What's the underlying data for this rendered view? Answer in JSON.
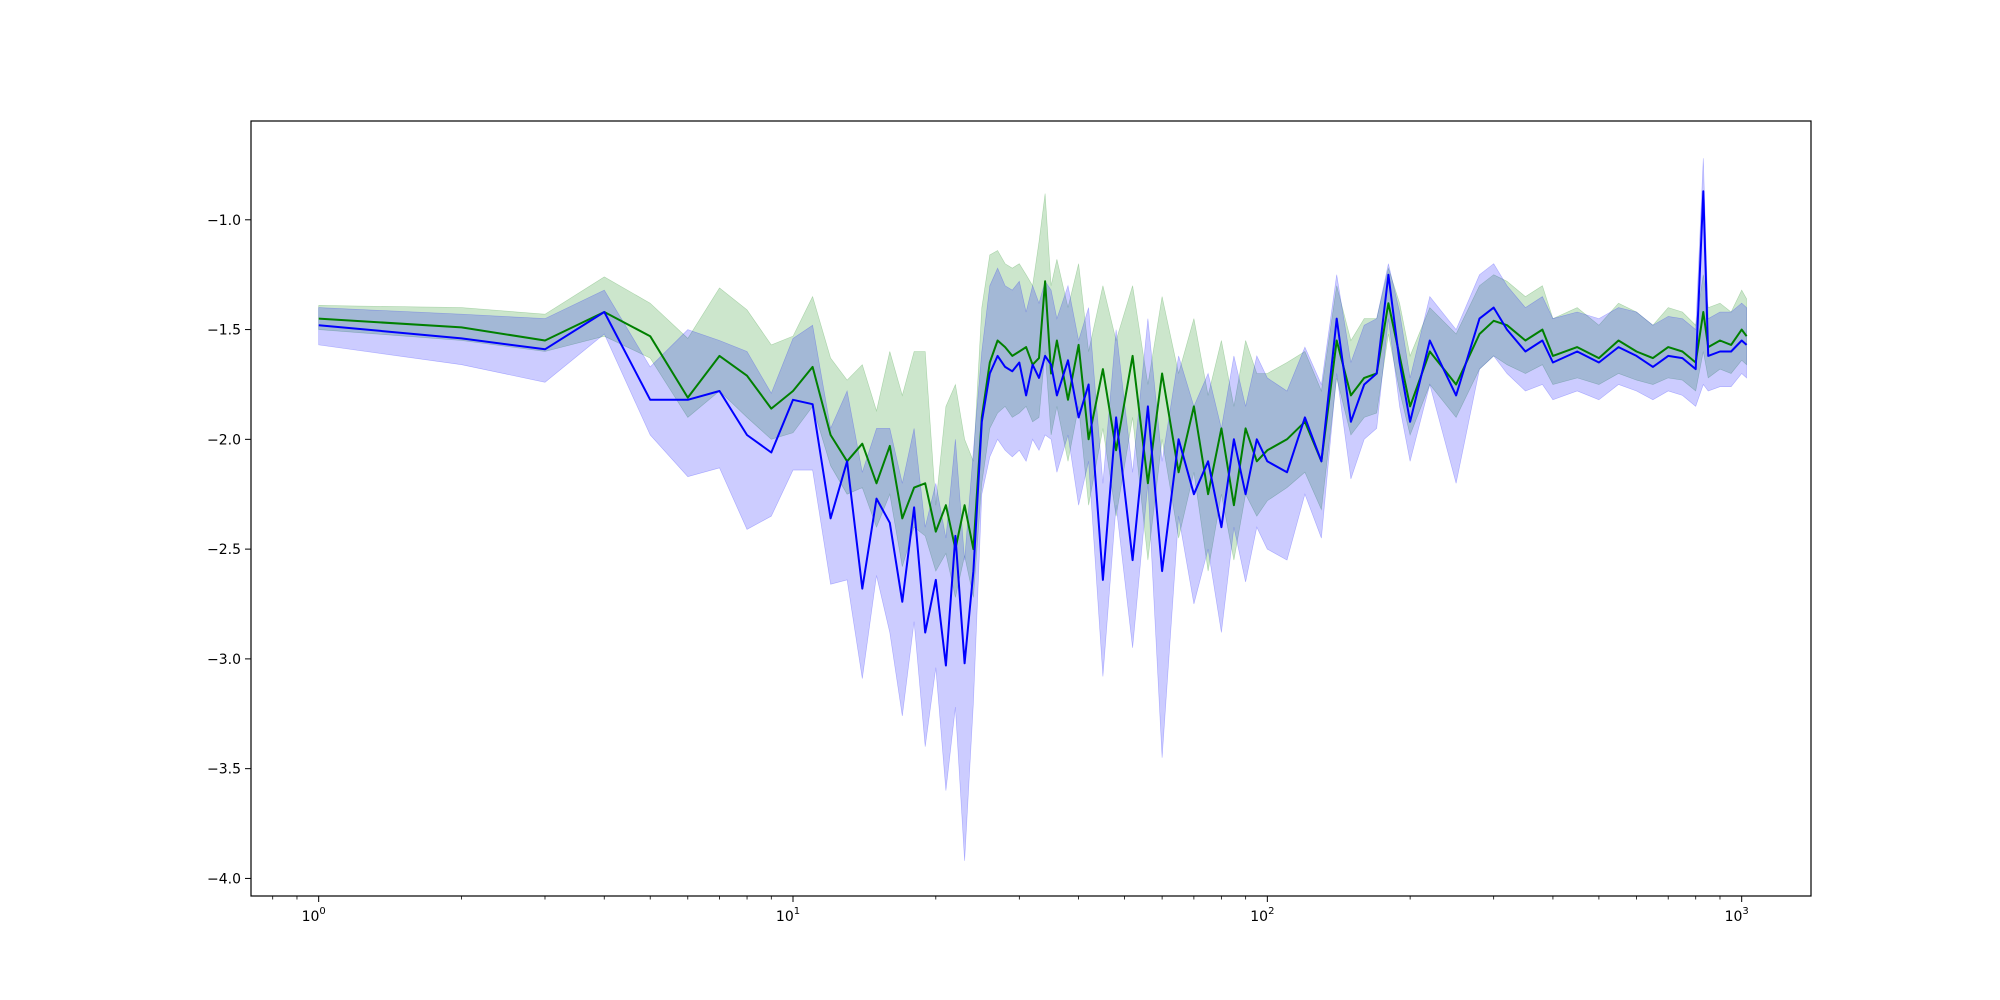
{
  "chart_data": {
    "type": "line",
    "title": "",
    "xlabel": "",
    "ylabel": "",
    "xscale": "log",
    "xlim": [
      0.72,
      1400
    ],
    "ylim": [
      -4.08,
      -0.55
    ],
    "grid": false,
    "legend": null,
    "x_ticks": [
      {
        "value": 1,
        "base": "10",
        "exp": "0"
      },
      {
        "value": 10,
        "base": "10",
        "exp": "1"
      },
      {
        "value": 100,
        "base": "10",
        "exp": "2"
      },
      {
        "value": 1000,
        "base": "10",
        "exp": "3"
      }
    ],
    "y_ticks": [
      {
        "value": -1.0,
        "label": "−1.0"
      },
      {
        "value": -1.5,
        "label": "−1.5"
      },
      {
        "value": -2.0,
        "label": "−2.0"
      },
      {
        "value": -2.5,
        "label": "−2.5"
      },
      {
        "value": -3.0,
        "label": "−3.0"
      },
      {
        "value": -3.5,
        "label": "−3.5"
      },
      {
        "value": -4.0,
        "label": "−4.0"
      }
    ],
    "series": [
      {
        "color": "#008000",
        "band_color": "#008000",
        "band_opacity": 0.2,
        "x": [
          1,
          2,
          3,
          4,
          5,
          6,
          7,
          8,
          9,
          10,
          11,
          12,
          13,
          14,
          15,
          16,
          17,
          18,
          19,
          20,
          21,
          22,
          23,
          24,
          25,
          26,
          27,
          28,
          29,
          30,
          31,
          32,
          33,
          34,
          35,
          36,
          38,
          40,
          42,
          45,
          48,
          52,
          56,
          60,
          65,
          70,
          75,
          80,
          85,
          90,
          95,
          100,
          110,
          120,
          130,
          140,
          150,
          160,
          170,
          180,
          190,
          200,
          220,
          250,
          280,
          300,
          320,
          350,
          380,
          400,
          450,
          500,
          550,
          600,
          650,
          700,
          750,
          800,
          830,
          850,
          900,
          950,
          1000,
          1024
        ],
        "y": [
          -1.45,
          -1.49,
          -1.55,
          -1.42,
          -1.53,
          -1.81,
          -1.62,
          -1.71,
          -1.86,
          -1.78,
          -1.67,
          -1.98,
          -2.1,
          -2.02,
          -2.2,
          -2.03,
          -2.36,
          -2.22,
          -2.2,
          -2.42,
          -2.3,
          -2.5,
          -2.3,
          -2.5,
          -1.9,
          -1.65,
          -1.55,
          -1.58,
          -1.62,
          -1.6,
          -1.58,
          -1.66,
          -1.63,
          -1.28,
          -1.7,
          -1.55,
          -1.82,
          -1.57,
          -2.0,
          -1.68,
          -2.05,
          -1.62,
          -2.2,
          -1.7,
          -2.15,
          -1.85,
          -2.25,
          -1.95,
          -2.3,
          -1.95,
          -2.1,
          -2.05,
          -2.0,
          -1.92,
          -2.1,
          -1.55,
          -1.8,
          -1.72,
          -1.7,
          -1.38,
          -1.62,
          -1.85,
          -1.6,
          -1.75,
          -1.52,
          -1.46,
          -1.48,
          -1.55,
          -1.5,
          -1.62,
          -1.58,
          -1.63,
          -1.55,
          -1.6,
          -1.63,
          -1.58,
          -1.6,
          -1.65,
          -1.42,
          -1.58,
          -1.55,
          -1.57,
          -1.5,
          -1.53
        ],
        "lower": [
          -1.5,
          -1.55,
          -1.6,
          -1.53,
          -1.63,
          -1.9,
          -1.78,
          -1.9,
          -2.0,
          -1.97,
          -1.85,
          -2.12,
          -2.25,
          -2.22,
          -2.4,
          -2.25,
          -2.58,
          -2.4,
          -2.44,
          -2.6,
          -2.52,
          -2.72,
          -2.53,
          -2.72,
          -2.2,
          -1.95,
          -1.88,
          -1.85,
          -1.9,
          -1.88,
          -1.85,
          -1.92,
          -1.9,
          -1.6,
          -1.98,
          -1.85,
          -2.1,
          -1.85,
          -2.3,
          -1.95,
          -2.35,
          -1.9,
          -2.55,
          -2.0,
          -2.45,
          -2.15,
          -2.6,
          -2.25,
          -2.55,
          -2.25,
          -2.35,
          -2.28,
          -2.22,
          -2.15,
          -2.32,
          -1.72,
          -1.98,
          -1.9,
          -1.88,
          -1.52,
          -1.78,
          -1.98,
          -1.75,
          -1.9,
          -1.68,
          -1.62,
          -1.66,
          -1.7,
          -1.66,
          -1.75,
          -1.72,
          -1.75,
          -1.7,
          -1.73,
          -1.75,
          -1.72,
          -1.73,
          -1.78,
          -1.6,
          -1.72,
          -1.68,
          -1.7,
          -1.64,
          -1.66
        ],
        "upper": [
          -1.39,
          -1.4,
          -1.43,
          -1.26,
          -1.38,
          -1.54,
          -1.31,
          -1.41,
          -1.57,
          -1.53,
          -1.35,
          -1.63,
          -1.73,
          -1.66,
          -1.87,
          -1.6,
          -1.8,
          -1.6,
          -1.6,
          -2.3,
          -1.85,
          -1.75,
          -2.0,
          -2.1,
          -1.4,
          -1.16,
          -1.14,
          -1.2,
          -1.22,
          -1.2,
          -1.25,
          -1.3,
          -1.1,
          -0.88,
          -1.3,
          -1.18,
          -1.4,
          -1.2,
          -1.6,
          -1.3,
          -1.55,
          -1.3,
          -1.75,
          -1.35,
          -1.7,
          -1.45,
          -1.8,
          -1.55,
          -1.85,
          -1.55,
          -1.7,
          -1.7,
          -1.65,
          -1.6,
          -1.78,
          -1.3,
          -1.55,
          -1.45,
          -1.45,
          -1.22,
          -1.38,
          -1.62,
          -1.4,
          -1.52,
          -1.3,
          -1.25,
          -1.28,
          -1.35,
          -1.3,
          -1.45,
          -1.4,
          -1.48,
          -1.38,
          -1.42,
          -1.48,
          -1.4,
          -1.42,
          -1.48,
          -1.25,
          -1.4,
          -1.38,
          -1.42,
          -1.32,
          -1.36
        ]
      },
      {
        "color": "#0000ff",
        "band_color": "#0000ff",
        "band_opacity": 0.2,
        "x": [
          1,
          2,
          3,
          4,
          5,
          6,
          7,
          8,
          9,
          10,
          11,
          12,
          13,
          14,
          15,
          16,
          17,
          18,
          19,
          20,
          21,
          22,
          23,
          24,
          25,
          26,
          27,
          28,
          29,
          30,
          31,
          32,
          33,
          34,
          35,
          36,
          38,
          40,
          42,
          45,
          48,
          52,
          56,
          60,
          65,
          70,
          75,
          80,
          85,
          90,
          95,
          100,
          110,
          120,
          130,
          140,
          150,
          160,
          170,
          180,
          190,
          200,
          220,
          250,
          280,
          300,
          320,
          350,
          380,
          400,
          450,
          500,
          550,
          600,
          650,
          700,
          750,
          800,
          830,
          850,
          900,
          950,
          1000,
          1024
        ],
        "y": [
          -1.48,
          -1.54,
          -1.59,
          -1.42,
          -1.82,
          -1.82,
          -1.78,
          -1.98,
          -2.06,
          -1.82,
          -1.84,
          -2.36,
          -2.1,
          -2.68,
          -2.27,
          -2.38,
          -2.74,
          -2.31,
          -2.88,
          -2.64,
          -3.03,
          -2.44,
          -3.02,
          -2.6,
          -1.92,
          -1.7,
          -1.62,
          -1.67,
          -1.69,
          -1.65,
          -1.8,
          -1.66,
          -1.72,
          -1.62,
          -1.66,
          -1.8,
          -1.64,
          -1.9,
          -1.75,
          -2.64,
          -1.9,
          -2.55,
          -1.85,
          -2.6,
          -2.0,
          -2.25,
          -2.1,
          -2.4,
          -2.0,
          -2.25,
          -2.0,
          -2.1,
          -2.15,
          -1.9,
          -2.1,
          -1.45,
          -1.92,
          -1.75,
          -1.7,
          -1.25,
          -1.65,
          -1.92,
          -1.55,
          -1.8,
          -1.45,
          -1.4,
          -1.5,
          -1.6,
          -1.55,
          -1.65,
          -1.6,
          -1.65,
          -1.58,
          -1.62,
          -1.67,
          -1.62,
          -1.63,
          -1.68,
          -0.87,
          -1.62,
          -1.6,
          -1.6,
          -1.55,
          -1.57
        ],
        "lower": [
          -1.57,
          -1.66,
          -1.74,
          -1.52,
          -1.98,
          -2.17,
          -2.13,
          -2.41,
          -2.35,
          -2.14,
          -2.14,
          -2.66,
          -2.64,
          -3.09,
          -2.62,
          -2.88,
          -3.26,
          -2.83,
          -3.4,
          -3.04,
          -3.6,
          -3.22,
          -3.92,
          -3.2,
          -2.25,
          -2.08,
          -2.0,
          -2.05,
          -2.08,
          -2.05,
          -2.1,
          -2.0,
          -2.05,
          -1.98,
          -2.0,
          -2.15,
          -1.98,
          -2.3,
          -2.1,
          -3.08,
          -2.3,
          -2.95,
          -2.2,
          -3.45,
          -2.35,
          -2.75,
          -2.5,
          -2.88,
          -2.4,
          -2.65,
          -2.4,
          -2.5,
          -2.55,
          -2.25,
          -2.45,
          -1.7,
          -2.18,
          -2.0,
          -1.95,
          -1.45,
          -1.85,
          -2.1,
          -1.75,
          -2.2,
          -1.68,
          -1.62,
          -1.7,
          -1.78,
          -1.75,
          -1.82,
          -1.78,
          -1.82,
          -1.75,
          -1.78,
          -1.82,
          -1.78,
          -1.8,
          -1.85,
          -1.75,
          -1.78,
          -1.76,
          -1.76,
          -1.7,
          -1.72
        ],
        "upper": [
          -1.4,
          -1.43,
          -1.45,
          -1.32,
          -1.67,
          -1.5,
          -1.55,
          -1.6,
          -1.79,
          -1.54,
          -1.48,
          -1.95,
          -1.78,
          -2.15,
          -1.95,
          -1.95,
          -2.2,
          -1.95,
          -2.4,
          -2.2,
          -2.45,
          -2.0,
          -2.55,
          -2.05,
          -1.6,
          -1.3,
          -1.22,
          -1.3,
          -1.32,
          -1.28,
          -1.42,
          -1.3,
          -1.38,
          -1.28,
          -1.32,
          -1.45,
          -1.3,
          -1.55,
          -1.4,
          -2.2,
          -1.5,
          -2.15,
          -1.45,
          -2.1,
          -1.62,
          -1.85,
          -1.7,
          -1.95,
          -1.62,
          -1.85,
          -1.62,
          -1.72,
          -1.78,
          -1.58,
          -1.75,
          -1.25,
          -1.65,
          -1.48,
          -1.45,
          -1.2,
          -1.42,
          -1.72,
          -1.35,
          -1.5,
          -1.25,
          -1.2,
          -1.3,
          -1.4,
          -1.35,
          -1.45,
          -1.42,
          -1.45,
          -1.4,
          -1.42,
          -1.48,
          -1.44,
          -1.45,
          -1.5,
          -0.72,
          -1.45,
          -1.42,
          -1.42,
          -1.38,
          -1.4
        ]
      }
    ]
  }
}
